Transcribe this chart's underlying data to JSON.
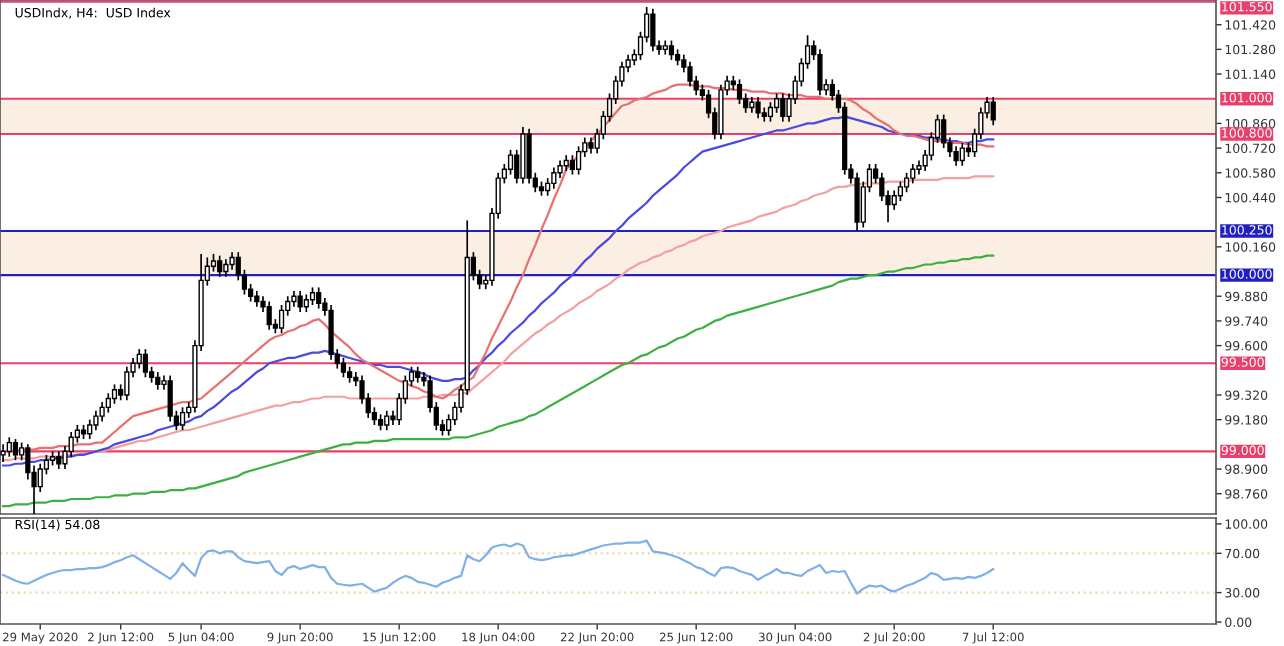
{
  "chart_data": [
    {
      "type": "candlestick",
      "title": "USDIndx, H4:  USD Index",
      "grid": false,
      "tick_labels": "y",
      "categories": [
        null,
        null,
        null,
        null,
        null,
        null,
        null,
        null,
        null,
        null,
        null,
        null,
        null,
        null,
        null,
        null,
        null,
        null,
        null,
        null,
        null,
        null,
        null,
        null,
        null,
        null,
        null,
        null,
        null,
        null,
        null,
        null,
        null,
        null,
        null,
        null,
        null,
        null,
        null,
        null,
        null,
        null,
        null,
        null,
        null,
        null,
        null,
        null,
        null,
        null,
        null,
        null,
        null,
        null,
        null,
        null,
        null,
        null,
        null,
        null,
        null,
        null,
        null,
        null,
        null,
        null,
        null,
        null,
        null,
        null,
        null,
        null,
        null,
        null,
        null,
        null,
        null,
        null,
        null,
        null,
        null,
        null,
        null,
        null,
        null,
        null,
        null,
        null,
        null,
        null,
        null,
        null,
        null,
        null,
        null,
        null,
        null,
        null,
        null,
        null,
        null,
        null,
        null,
        null,
        null,
        null,
        null,
        null,
        null,
        null,
        null,
        null,
        null,
        null,
        null,
        null,
        null,
        null,
        null,
        null,
        null,
        null,
        null,
        null,
        null,
        null,
        null,
        null,
        null,
        null,
        null,
        null,
        null,
        null,
        null,
        null,
        null,
        null,
        null,
        null,
        null,
        null,
        null,
        null,
        null,
        null,
        null,
        null,
        null,
        null,
        null,
        null,
        null,
        null,
        null,
        null,
        null,
        null,
        null,
        null,
        null
      ],
      "ohlc": [
        [
          98.98,
          99.04,
          98.94,
          99.0
        ],
        [
          99.0,
          99.08,
          98.97,
          99.05
        ],
        [
          99.05,
          99.07,
          98.95,
          98.98
        ],
        [
          98.98,
          99.05,
          98.95,
          99.02
        ],
        [
          99.02,
          99.04,
          98.84,
          98.88
        ],
        [
          98.88,
          98.92,
          98.64,
          98.8
        ],
        [
          98.8,
          98.93,
          98.77,
          98.9
        ],
        [
          98.9,
          98.98,
          98.87,
          98.95
        ],
        [
          98.95,
          99.0,
          98.92,
          98.97
        ],
        [
          98.97,
          99.0,
          98.9,
          98.93
        ],
        [
          98.93,
          99.03,
          98.9,
          99.0
        ],
        [
          99.0,
          99.11,
          98.97,
          99.08
        ],
        [
          99.08,
          99.15,
          99.05,
          99.12
        ],
        [
          99.12,
          99.15,
          99.07,
          99.1
        ],
        [
          99.1,
          99.18,
          99.07,
          99.15
        ],
        [
          99.15,
          99.23,
          99.12,
          99.2
        ],
        [
          99.2,
          99.28,
          99.17,
          99.25
        ],
        [
          99.25,
          99.33,
          99.22,
          99.3
        ],
        [
          99.3,
          99.38,
          99.27,
          99.35
        ],
        [
          99.35,
          99.38,
          99.29,
          99.32
        ],
        [
          99.32,
          99.48,
          99.29,
          99.45
        ],
        [
          99.45,
          99.53,
          99.42,
          99.5
        ],
        [
          99.5,
          99.58,
          99.47,
          99.55
        ],
        [
          99.55,
          99.58,
          99.42,
          99.45
        ],
        [
          99.45,
          99.48,
          99.39,
          99.42
        ],
        [
          99.42,
          99.45,
          99.35,
          99.38
        ],
        [
          99.38,
          99.43,
          99.35,
          99.4
        ],
        [
          99.4,
          99.43,
          99.17,
          99.2
        ],
        [
          99.2,
          99.23,
          99.12,
          99.15
        ],
        [
          99.15,
          99.25,
          99.12,
          99.22
        ],
        [
          99.22,
          99.28,
          99.19,
          99.25
        ],
        [
          99.25,
          99.63,
          99.22,
          99.6
        ],
        [
          99.6,
          100.12,
          99.57,
          99.97
        ],
        [
          99.97,
          100.1,
          99.94,
          100.05
        ],
        [
          100.05,
          100.12,
          100.02,
          100.08
        ],
        [
          100.08,
          100.11,
          99.99,
          100.02
        ],
        [
          100.02,
          100.09,
          99.99,
          100.06
        ],
        [
          100.06,
          100.13,
          100.03,
          100.1
        ],
        [
          100.1,
          100.13,
          99.97,
          100.0
        ],
        [
          100.0,
          100.03,
          99.89,
          99.92
        ],
        [
          99.92,
          99.95,
          99.85,
          99.88
        ],
        [
          99.88,
          99.91,
          99.82,
          99.85
        ],
        [
          99.85,
          99.88,
          99.79,
          99.82
        ],
        [
          99.82,
          99.85,
          99.69,
          99.72
        ],
        [
          99.72,
          99.75,
          99.67,
          99.7
        ],
        [
          99.7,
          99.83,
          99.67,
          99.8
        ],
        [
          99.8,
          99.88,
          99.77,
          99.85
        ],
        [
          99.85,
          99.91,
          99.82,
          99.88
        ],
        [
          99.88,
          99.91,
          99.79,
          99.82
        ],
        [
          99.82,
          99.89,
          99.79,
          99.86
        ],
        [
          99.86,
          99.93,
          99.83,
          99.9
        ],
        [
          99.9,
          99.93,
          99.81,
          99.84
        ],
        [
          99.84,
          99.87,
          99.77,
          99.8
        ],
        [
          99.8,
          99.83,
          99.52,
          99.55
        ],
        [
          99.55,
          99.58,
          99.47,
          99.5
        ],
        [
          99.5,
          99.53,
          99.42,
          99.45
        ],
        [
          99.45,
          99.48,
          99.39,
          99.42
        ],
        [
          99.42,
          99.45,
          99.37,
          99.4
        ],
        [
          99.4,
          99.43,
          99.27,
          99.3
        ],
        [
          99.3,
          99.33,
          99.19,
          99.22
        ],
        [
          99.22,
          99.25,
          99.15,
          99.18
        ],
        [
          99.18,
          99.21,
          99.12,
          99.15
        ],
        [
          99.15,
          99.23,
          99.12,
          99.2
        ],
        [
          99.2,
          99.23,
          99.15,
          99.18
        ],
        [
          99.18,
          99.33,
          99.15,
          99.3
        ],
        [
          99.3,
          99.43,
          99.27,
          99.4
        ],
        [
          99.4,
          99.48,
          99.37,
          99.45
        ],
        [
          99.45,
          99.48,
          99.39,
          99.42
        ],
        [
          99.42,
          99.45,
          99.37,
          99.4
        ],
        [
          99.4,
          99.43,
          99.22,
          99.25
        ],
        [
          99.25,
          99.28,
          99.12,
          99.15
        ],
        [
          99.15,
          99.18,
          99.09,
          99.12
        ],
        [
          99.12,
          99.21,
          99.09,
          99.18
        ],
        [
          99.18,
          99.28,
          99.15,
          99.25
        ],
        [
          99.25,
          99.38,
          99.22,
          99.35
        ],
        [
          99.35,
          100.31,
          99.32,
          100.1
        ],
        [
          100.1,
          100.13,
          99.97,
          100.0
        ],
        [
          100.0,
          100.03,
          99.92,
          99.95
        ],
        [
          99.95,
          100.0,
          99.92,
          99.97
        ],
        [
          99.97,
          100.38,
          99.94,
          100.35
        ],
        [
          100.35,
          100.58,
          100.32,
          100.55
        ],
        [
          100.55,
          100.63,
          100.52,
          100.6
        ],
        [
          100.6,
          100.71,
          100.57,
          100.68
        ],
        [
          100.68,
          100.71,
          100.52,
          100.55
        ],
        [
          100.55,
          100.84,
          100.52,
          100.8
        ],
        [
          100.8,
          100.83,
          100.52,
          100.55
        ],
        [
          100.55,
          100.58,
          100.47,
          100.5
        ],
        [
          100.5,
          100.53,
          100.45,
          100.48
        ],
        [
          100.48,
          100.55,
          100.45,
          100.52
        ],
        [
          100.52,
          100.61,
          100.49,
          100.58
        ],
        [
          100.58,
          100.65,
          100.55,
          100.62
        ],
        [
          100.62,
          100.68,
          100.59,
          100.65
        ],
        [
          100.65,
          100.68,
          100.57,
          100.6
        ],
        [
          100.6,
          100.73,
          100.57,
          100.7
        ],
        [
          100.7,
          100.78,
          100.67,
          100.75
        ],
        [
          100.75,
          100.78,
          100.69,
          100.72
        ],
        [
          100.72,
          100.83,
          100.69,
          100.8
        ],
        [
          100.8,
          100.93,
          100.77,
          100.9
        ],
        [
          100.9,
          101.03,
          100.87,
          101.0
        ],
        [
          101.0,
          101.13,
          100.97,
          101.1
        ],
        [
          101.1,
          101.21,
          101.07,
          101.18
        ],
        [
          101.18,
          101.25,
          101.15,
          101.22
        ],
        [
          101.22,
          101.28,
          101.19,
          101.25
        ],
        [
          101.25,
          101.38,
          101.22,
          101.35
        ],
        [
          101.35,
          101.52,
          101.32,
          101.48
        ],
        [
          101.48,
          101.51,
          101.27,
          101.3
        ],
        [
          101.3,
          101.33,
          101.25,
          101.28
        ],
        [
          101.28,
          101.33,
          101.25,
          101.3
        ],
        [
          101.3,
          101.33,
          101.22,
          101.25
        ],
        [
          101.25,
          101.28,
          101.19,
          101.22
        ],
        [
          101.22,
          101.25,
          101.15,
          101.18
        ],
        [
          101.18,
          101.21,
          101.07,
          101.1
        ],
        [
          101.1,
          101.13,
          101.02,
          101.05
        ],
        [
          101.05,
          101.08,
          100.99,
          101.02
        ],
        [
          101.02,
          101.05,
          100.89,
          100.92
        ],
        [
          100.92,
          100.95,
          100.77,
          100.8
        ],
        [
          100.8,
          101.08,
          100.77,
          101.05
        ],
        [
          101.05,
          101.13,
          101.02,
          101.1
        ],
        [
          101.1,
          101.13,
          101.05,
          101.08
        ],
        [
          101.08,
          101.11,
          100.97,
          101.0
        ],
        [
          101.0,
          101.03,
          100.92,
          100.95
        ],
        [
          100.95,
          101.01,
          100.92,
          100.98
        ],
        [
          100.98,
          101.01,
          100.89,
          100.92
        ],
        [
          100.92,
          100.95,
          100.87,
          100.9
        ],
        [
          100.9,
          100.98,
          100.87,
          100.95
        ],
        [
          100.95,
          101.03,
          100.92,
          101.0
        ],
        [
          101.0,
          101.03,
          100.87,
          100.9
        ],
        [
          100.9,
          101.03,
          100.87,
          101.0
        ],
        [
          101.0,
          101.13,
          100.97,
          101.1
        ],
        [
          101.1,
          101.23,
          101.07,
          101.2
        ],
        [
          101.2,
          101.36,
          101.17,
          101.3
        ],
        [
          101.3,
          101.33,
          101.22,
          101.25
        ],
        [
          101.25,
          101.28,
          101.02,
          101.05
        ],
        [
          101.05,
          101.11,
          101.02,
          101.08
        ],
        [
          101.08,
          101.11,
          100.99,
          101.02
        ],
        [
          101.02,
          101.05,
          100.92,
          100.95
        ],
        [
          100.95,
          100.98,
          100.57,
          100.6
        ],
        [
          100.6,
          100.63,
          100.52,
          100.55
        ],
        [
          100.55,
          100.58,
          100.25,
          100.3
        ],
        [
          100.3,
          100.53,
          100.27,
          100.5
        ],
        [
          100.5,
          100.63,
          100.47,
          100.6
        ],
        [
          100.6,
          100.63,
          100.52,
          100.55
        ],
        [
          100.55,
          100.58,
          100.42,
          100.45
        ],
        [
          100.45,
          100.48,
          100.3,
          100.4
        ],
        [
          100.4,
          100.48,
          100.37,
          100.45
        ],
        [
          100.45,
          100.53,
          100.42,
          100.5
        ],
        [
          100.5,
          100.58,
          100.47,
          100.55
        ],
        [
          100.55,
          100.63,
          100.52,
          100.6
        ],
        [
          100.6,
          100.65,
          100.57,
          100.62
        ],
        [
          100.62,
          100.71,
          100.59,
          100.68
        ],
        [
          100.68,
          100.81,
          100.65,
          100.78
        ],
        [
          100.78,
          100.91,
          100.75,
          100.88
        ],
        [
          100.88,
          100.91,
          100.72,
          100.75
        ],
        [
          100.75,
          100.78,
          100.67,
          100.7
        ],
        [
          100.7,
          100.73,
          100.62,
          100.65
        ],
        [
          100.65,
          100.75,
          100.62,
          100.72
        ],
        [
          100.72,
          100.75,
          100.67,
          100.7
        ],
        [
          100.7,
          100.83,
          100.67,
          100.8
        ],
        [
          100.8,
          100.95,
          100.77,
          100.92
        ],
        [
          100.92,
          101.01,
          100.89,
          100.98
        ],
        [
          100.98,
          101.01,
          100.85,
          100.88
        ]
      ],
      "series": [
        {
          "type": "line",
          "color": "#3cb043",
          "values": [
            98.69,
            98.69,
            98.7,
            98.7,
            98.7,
            98.71,
            98.71,
            98.71,
            98.72,
            98.72,
            98.72,
            98.73,
            98.73,
            98.73,
            98.73,
            98.74,
            98.74,
            98.74,
            98.75,
            98.75,
            98.75,
            98.76,
            98.76,
            98.76,
            98.77,
            98.77,
            98.77,
            98.78,
            98.78,
            98.78,
            98.79,
            98.79,
            98.8,
            98.81,
            98.82,
            98.83,
            98.84,
            98.85,
            98.86,
            98.88,
            98.89,
            98.9,
            98.91,
            98.92,
            98.93,
            98.94,
            98.95,
            98.96,
            98.97,
            98.98,
            98.99,
            99.0,
            99.01,
            99.02,
            99.03,
            99.04,
            99.04,
            99.05,
            99.05,
            99.05,
            99.06,
            99.06,
            99.06,
            99.07,
            99.07,
            99.07,
            99.07,
            99.07,
            99.07,
            99.07,
            99.07,
            99.07,
            99.07,
            99.08,
            99.08,
            99.08,
            99.09,
            99.1,
            99.11,
            99.12,
            99.14,
            99.15,
            99.16,
            99.17,
            99.18,
            99.2,
            99.21,
            99.23,
            99.25,
            99.27,
            99.29,
            99.31,
            99.33,
            99.35,
            99.37,
            99.39,
            99.41,
            99.43,
            99.45,
            99.47,
            99.49,
            99.5,
            99.52,
            99.54,
            99.55,
            99.57,
            99.59,
            99.6,
            99.62,
            99.64,
            99.65,
            99.67,
            99.69,
            99.7,
            99.72,
            99.74,
            99.75,
            99.77,
            99.78,
            99.79,
            99.8,
            99.81,
            99.82,
            99.83,
            99.84,
            99.85,
            99.86,
            99.87,
            99.88,
            99.89,
            99.9,
            99.91,
            99.92,
            99.93,
            99.94,
            99.96,
            99.97,
            99.98,
            99.98,
            99.99,
            100.0,
            100.0,
            100.01,
            100.02,
            100.02,
            100.03,
            100.04,
            100.04,
            100.05,
            100.06,
            100.06,
            100.07,
            100.07,
            100.08,
            100.08,
            100.09,
            100.09,
            100.1,
            100.1,
            100.11,
            100.11
          ]
        },
        {
          "type": "line",
          "color": "#f4a0a0",
          "values": [
            98.95,
            98.95,
            98.96,
            98.96,
            98.96,
            98.96,
            98.97,
            98.97,
            98.97,
            98.97,
            98.98,
            98.98,
            98.98,
            98.99,
            98.99,
            99.0,
            99.0,
            99.01,
            99.02,
            99.03,
            99.04,
            99.05,
            99.06,
            99.06,
            99.07,
            99.08,
            99.09,
            99.1,
            99.11,
            99.12,
            99.12,
            99.13,
            99.14,
            99.15,
            99.16,
            99.17,
            99.18,
            99.19,
            99.2,
            99.21,
            99.22,
            99.23,
            99.24,
            99.25,
            99.26,
            99.26,
            99.27,
            99.28,
            99.28,
            99.29,
            99.3,
            99.3,
            99.31,
            99.31,
            99.31,
            99.31,
            99.3,
            99.3,
            99.3,
            99.3,
            99.3,
            99.3,
            99.3,
            99.3,
            99.3,
            99.3,
            99.3,
            99.3,
            99.31,
            99.31,
            99.31,
            99.32,
            99.32,
            99.32,
            99.33,
            99.33,
            99.36,
            99.39,
            99.42,
            99.45,
            99.48,
            99.51,
            99.55,
            99.58,
            99.61,
            99.64,
            99.67,
            99.69,
            99.72,
            99.74,
            99.77,
            99.79,
            99.81,
            99.84,
            99.86,
            99.88,
            99.91,
            99.93,
            99.95,
            99.98,
            100.0,
            100.03,
            100.05,
            100.07,
            100.08,
            100.1,
            100.11,
            100.13,
            100.14,
            100.16,
            100.17,
            100.19,
            100.2,
            100.22,
            100.23,
            100.24,
            100.25,
            100.27,
            100.28,
            100.29,
            100.3,
            100.31,
            100.33,
            100.34,
            100.35,
            100.36,
            100.38,
            100.39,
            100.4,
            100.42,
            100.43,
            100.45,
            100.46,
            100.47,
            100.49,
            100.5,
            100.5,
            100.51,
            100.51,
            100.52,
            100.52,
            100.52,
            100.52,
            100.53,
            100.53,
            100.53,
            100.53,
            100.54,
            100.54,
            100.54,
            100.54,
            100.54,
            100.55,
            100.55,
            100.55,
            100.55,
            100.55,
            100.56,
            100.56,
            100.56,
            100.56
          ]
        },
        {
          "type": "line",
          "color": "#4a4ae0",
          "values": [
            98.92,
            98.92,
            98.93,
            98.93,
            98.94,
            98.94,
            98.95,
            98.95,
            98.96,
            98.96,
            98.97,
            98.97,
            98.98,
            98.98,
            98.99,
            99.0,
            99.01,
            99.02,
            99.04,
            99.05,
            99.06,
            99.07,
            99.08,
            99.09,
            99.1,
            99.12,
            99.13,
            99.14,
            99.15,
            99.16,
            99.17,
            99.19,
            99.2,
            99.23,
            99.25,
            99.28,
            99.31,
            99.34,
            99.36,
            99.39,
            99.42,
            99.45,
            99.47,
            99.5,
            99.51,
            99.52,
            99.53,
            99.53,
            99.54,
            99.55,
            99.56,
            99.56,
            99.57,
            99.56,
            99.55,
            99.54,
            99.53,
            99.52,
            99.51,
            99.5,
            99.49,
            99.49,
            99.48,
            99.48,
            99.48,
            99.47,
            99.46,
            99.45,
            99.44,
            99.42,
            99.41,
            99.4,
            99.4,
            99.41,
            99.41,
            99.42,
            99.46,
            99.49,
            99.53,
            99.56,
            99.6,
            99.63,
            99.67,
            99.7,
            99.73,
            99.77,
            99.8,
            99.84,
            99.87,
            99.9,
            99.94,
            99.97,
            100.0,
            100.04,
            100.08,
            100.11,
            100.15,
            100.18,
            100.21,
            100.25,
            100.28,
            100.32,
            100.35,
            100.38,
            100.41,
            100.45,
            100.48,
            100.51,
            100.54,
            100.57,
            100.61,
            100.64,
            100.67,
            100.7,
            100.71,
            100.72,
            100.73,
            100.74,
            100.75,
            100.76,
            100.77,
            100.78,
            100.79,
            100.8,
            100.81,
            100.82,
            100.82,
            100.83,
            100.84,
            100.85,
            100.86,
            100.86,
            100.87,
            100.88,
            100.89,
            100.89,
            100.9,
            100.89,
            100.88,
            100.87,
            100.86,
            100.85,
            100.84,
            100.82,
            100.81,
            100.8,
            100.8,
            100.79,
            100.79,
            100.78,
            100.78,
            100.77,
            100.77,
            100.76,
            100.76,
            100.75,
            100.75,
            100.76,
            100.76,
            100.77,
            100.77
          ]
        },
        {
          "type": "line",
          "color": "#e87070",
          "values": [
            99.0,
            99.0,
            99.0,
            99.01,
            99.01,
            99.01,
            99.02,
            99.02,
            99.02,
            99.03,
            99.03,
            99.03,
            99.04,
            99.04,
            99.04,
            99.05,
            99.05,
            99.08,
            99.11,
            99.14,
            99.17,
            99.2,
            99.21,
            99.22,
            99.23,
            99.24,
            99.25,
            99.26,
            99.27,
            99.28,
            99.28,
            99.29,
            99.3,
            99.33,
            99.36,
            99.39,
            99.42,
            99.45,
            99.48,
            99.51,
            99.54,
            99.57,
            99.6,
            99.63,
            99.65,
            99.66,
            99.68,
            99.69,
            99.71,
            99.72,
            99.74,
            99.75,
            99.72,
            99.68,
            99.65,
            99.62,
            99.59,
            99.55,
            99.52,
            99.5,
            99.48,
            99.46,
            99.44,
            99.42,
            99.4,
            99.39,
            99.37,
            99.36,
            99.34,
            99.33,
            99.31,
            99.3,
            99.32,
            99.35,
            99.37,
            99.4,
            99.42,
            99.49,
            99.56,
            99.64,
            99.71,
            99.78,
            99.85,
            99.93,
            100.0,
            100.09,
            100.17,
            100.26,
            100.34,
            100.43,
            100.51,
            100.6,
            100.64,
            100.68,
            100.72,
            100.76,
            100.8,
            100.84,
            100.88,
            100.92,
            100.96,
            100.97,
            100.99,
            101.0,
            101.01,
            101.03,
            101.04,
            101.05,
            101.07,
            101.08,
            101.08,
            101.08,
            101.07,
            101.07,
            101.07,
            101.06,
            101.06,
            101.06,
            101.05,
            101.05,
            101.05,
            101.04,
            101.04,
            101.04,
            101.03,
            101.03,
            101.03,
            101.02,
            101.02,
            101.02,
            101.01,
            101.01,
            101.01,
            101.0,
            101.0,
            101.0,
            101.0,
            100.99,
            100.97,
            100.94,
            100.92,
            100.89,
            100.87,
            100.85,
            100.82,
            100.8,
            100.79,
            100.79,
            100.78,
            100.77,
            100.76,
            100.76,
            100.76,
            100.75,
            100.75,
            100.75,
            100.74,
            100.74,
            100.74,
            100.73,
            100.73
          ]
        }
      ],
      "ylim": [
        98.645,
        101.56
      ],
      "yticks": [
        {
          "value": 101.42,
          "label": "101.420"
        },
        {
          "value": 101.28,
          "label": "101.280"
        },
        {
          "value": 101.14,
          "label": "101.140"
        },
        {
          "value": 100.86,
          "label": "100.860"
        },
        {
          "value": 100.72,
          "label": "100.720"
        },
        {
          "value": 100.58,
          "label": "100.580"
        },
        {
          "value": 100.44,
          "label": "100.440"
        },
        {
          "value": 100.16,
          "label": "100.160"
        },
        {
          "value": 99.88,
          "label": "99.880"
        },
        {
          "value": 99.74,
          "label": "99.740"
        },
        {
          "value": 99.6,
          "label": "99.600"
        },
        {
          "value": 99.32,
          "label": "99.320"
        },
        {
          "value": 99.18,
          "label": "99.180"
        },
        {
          "value": 98.9,
          "label": "98.900"
        },
        {
          "value": 98.76,
          "label": "98.760"
        }
      ],
      "ref_lines": [
        {
          "axis": "y",
          "value": 101.55,
          "label": "101.550",
          "color": "#e8406a"
        },
        {
          "axis": "y",
          "value": 101.0,
          "label": "101.000",
          "color": "#e8406a"
        },
        {
          "axis": "y",
          "value": 100.8,
          "label": "100.800",
          "color": "#e8406a"
        },
        {
          "axis": "y",
          "value": 100.25,
          "label": "100.250",
          "color": "#2020c0"
        },
        {
          "axis": "y",
          "value": 100.0,
          "label": "100.000",
          "color": "#2020c0"
        },
        {
          "axis": "y",
          "value": 99.5,
          "label": "99.500",
          "color": "#e8406a"
        },
        {
          "axis": "y",
          "value": 99.0,
          "label": "99.000",
          "color": "#e8406a"
        }
      ],
      "bands": [
        {
          "axis": "y",
          "from": 100.8,
          "to": 101.0,
          "color": "#fbeee2"
        },
        {
          "axis": "y",
          "from": 100.0,
          "to": 100.25,
          "color": "#fbeee2"
        }
      ]
    },
    {
      "type": "line",
      "title": "RSI(14) 54.08",
      "grid": false,
      "categories": [
        null,
        null,
        null,
        null,
        null,
        null,
        "29 May 2020",
        null,
        null,
        null,
        null,
        null,
        null,
        null,
        null,
        null,
        null,
        null,
        null,
        "2 Jun 12:00",
        null,
        null,
        null,
        null,
        null,
        null,
        null,
        null,
        null,
        null,
        null,
        null,
        "5 Jun 04:00",
        null,
        null,
        null,
        null,
        null,
        null,
        null,
        null,
        null,
        null,
        null,
        null,
        null,
        null,
        null,
        "9 Jun 20:00",
        null,
        null,
        null,
        null,
        null,
        null,
        null,
        null,
        null,
        null,
        null,
        null,
        null,
        null,
        null,
        "15 Jun 12:00",
        null,
        null,
        null,
        null,
        null,
        null,
        null,
        null,
        null,
        null,
        null,
        null,
        null,
        null,
        null,
        "18 Jun 04:00",
        null,
        null,
        null,
        null,
        null,
        null,
        null,
        null,
        null,
        null,
        null,
        null,
        null,
        null,
        null,
        "22 Jun 20:00",
        null,
        null,
        null,
        null,
        null,
        null,
        null,
        null,
        null,
        null,
        null,
        null,
        null,
        null,
        null,
        "25 Jun 12:00",
        null,
        null,
        null,
        null,
        null,
        null,
        null,
        null,
        null,
        null,
        null,
        null,
        null,
        null,
        null,
        "30 Jun 04:00",
        null,
        null,
        null,
        null,
        null,
        null,
        null,
        null,
        null,
        null,
        null,
        null,
        null,
        null,
        null,
        "2 Jul 20:00",
        null,
        null,
        null,
        null,
        null,
        null,
        null,
        null,
        null,
        null,
        null,
        null,
        null,
        null,
        null,
        "7 Jul 12:00"
      ],
      "series": [
        {
          "color": "#7fb0e8",
          "values": [
            48,
            45,
            42,
            40,
            39,
            42,
            45,
            48,
            50,
            52,
            53,
            53,
            54,
            54,
            55,
            55,
            56,
            58,
            61,
            63,
            66,
            68,
            64,
            60,
            56,
            52,
            48,
            44,
            50,
            60,
            53,
            47,
            65,
            72,
            73,
            70,
            72,
            72,
            66,
            62,
            61,
            60,
            61,
            62,
            52,
            48,
            55,
            57,
            54,
            56,
            58,
            56,
            56,
            45,
            39,
            38,
            37,
            38,
            39,
            35,
            31,
            33,
            35,
            40,
            44,
            47,
            45,
            41,
            40,
            38,
            36,
            40,
            42,
            45,
            47,
            68,
            64,
            62,
            68,
            76,
            78,
            79,
            77,
            80,
            78,
            66,
            64,
            63,
            64,
            66,
            67,
            68,
            68,
            70,
            72,
            74,
            76,
            78,
            79,
            80,
            80,
            81,
            81,
            81,
            83,
            72,
            71,
            70,
            68,
            66,
            63,
            60,
            56,
            54,
            50,
            47,
            55,
            56,
            55,
            52,
            50,
            48,
            43,
            47,
            50,
            54,
            50,
            50,
            48,
            47,
            52,
            55,
            58,
            50,
            52,
            51,
            52,
            40,
            29,
            34,
            37,
            36,
            37,
            33,
            31,
            34,
            37,
            39,
            42,
            45,
            50,
            48,
            43,
            44,
            45,
            44,
            46,
            45,
            47,
            50,
            54
          ]
        }
      ],
      "ylim": [
        -2,
        106
      ],
      "yticks": [
        {
          "value": 100,
          "label": "100.00"
        },
        {
          "value": 70,
          "label": "70.00"
        },
        {
          "value": 30,
          "label": "30.00"
        },
        {
          "value": 0,
          "label": "0.00"
        }
      ],
      "ref_lines": [
        {
          "axis": "y",
          "value": 70,
          "color": "#f0d8b0",
          "line_style": "dotted"
        },
        {
          "axis": "y",
          "value": 30,
          "color": "#f0d8b0",
          "line_style": "dotted"
        }
      ]
    }
  ]
}
